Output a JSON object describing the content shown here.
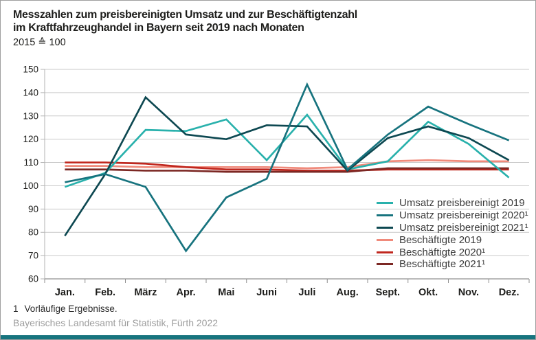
{
  "header": {
    "title_line1": "Messzahlen zum preisbereinigten Umsatz und zur Beschäftigtenzahl",
    "title_line2": "im Kraftfahrzeughandel in Bayern seit 2019 nach Monaten",
    "subtitle": "2015 ≙ 100"
  },
  "footnote": {
    "marker": "1",
    "text": "Vorläufige Ergebnisse."
  },
  "source": "Bayerisches Landesamt für Statistik, Fürth 2022",
  "accent_color": "#17747e",
  "chart_data": {
    "type": "line",
    "categories": [
      "Jan.",
      "Feb.",
      "März",
      "Apr.",
      "Mai",
      "Juni",
      "Juli",
      "Aug.",
      "Sept.",
      "Okt.",
      "Nov.",
      "Dez."
    ],
    "y_ticks": [
      150,
      140,
      130,
      120,
      110,
      100,
      90,
      80,
      70,
      60
    ],
    "ylim": [
      60,
      150
    ],
    "grid": "horizontal",
    "legend_position": "inside-right-bottom",
    "series": [
      {
        "name": "Umsatz preisbereinigt 2019",
        "color": "#29b1ac",
        "values": [
          99.5,
          105.5,
          124,
          123.5,
          128.5,
          111,
          130.5,
          107,
          110.5,
          127.5,
          118,
          103.5
        ]
      },
      {
        "name": "Umsatz preisbereinigt 2020¹",
        "color": "#17737e",
        "values": [
          101.5,
          105,
          99.5,
          72,
          95,
          103,
          143.5,
          107,
          122,
          134,
          126.5,
          119.5
        ]
      },
      {
        "name": "Umsatz preisbereinigt 2021¹",
        "color": "#0d4851",
        "values": [
          78.5,
          105,
          138,
          122,
          120,
          126,
          125.5,
          106.5,
          120.5,
          125.5,
          120.5,
          111
        ]
      },
      {
        "name": "Beschäftigte 2019",
        "color": "#f08a7b",
        "values": [
          108.5,
          108.5,
          108,
          108,
          108,
          108,
          107.5,
          108,
          110.5,
          111,
          110.5,
          110.5
        ]
      },
      {
        "name": "Beschäftigte 2020¹",
        "color": "#c0271e",
        "values": [
          110,
          110,
          109.5,
          108,
          107,
          107,
          106.5,
          106.5,
          107,
          107,
          107,
          107
        ]
      },
      {
        "name": "Beschäftigte 2021¹",
        "color": "#7c2824",
        "values": [
          107,
          107,
          106.5,
          106.5,
          106,
          106,
          106,
          106,
          107.5,
          107.5,
          107.5,
          107.5
        ]
      }
    ]
  }
}
